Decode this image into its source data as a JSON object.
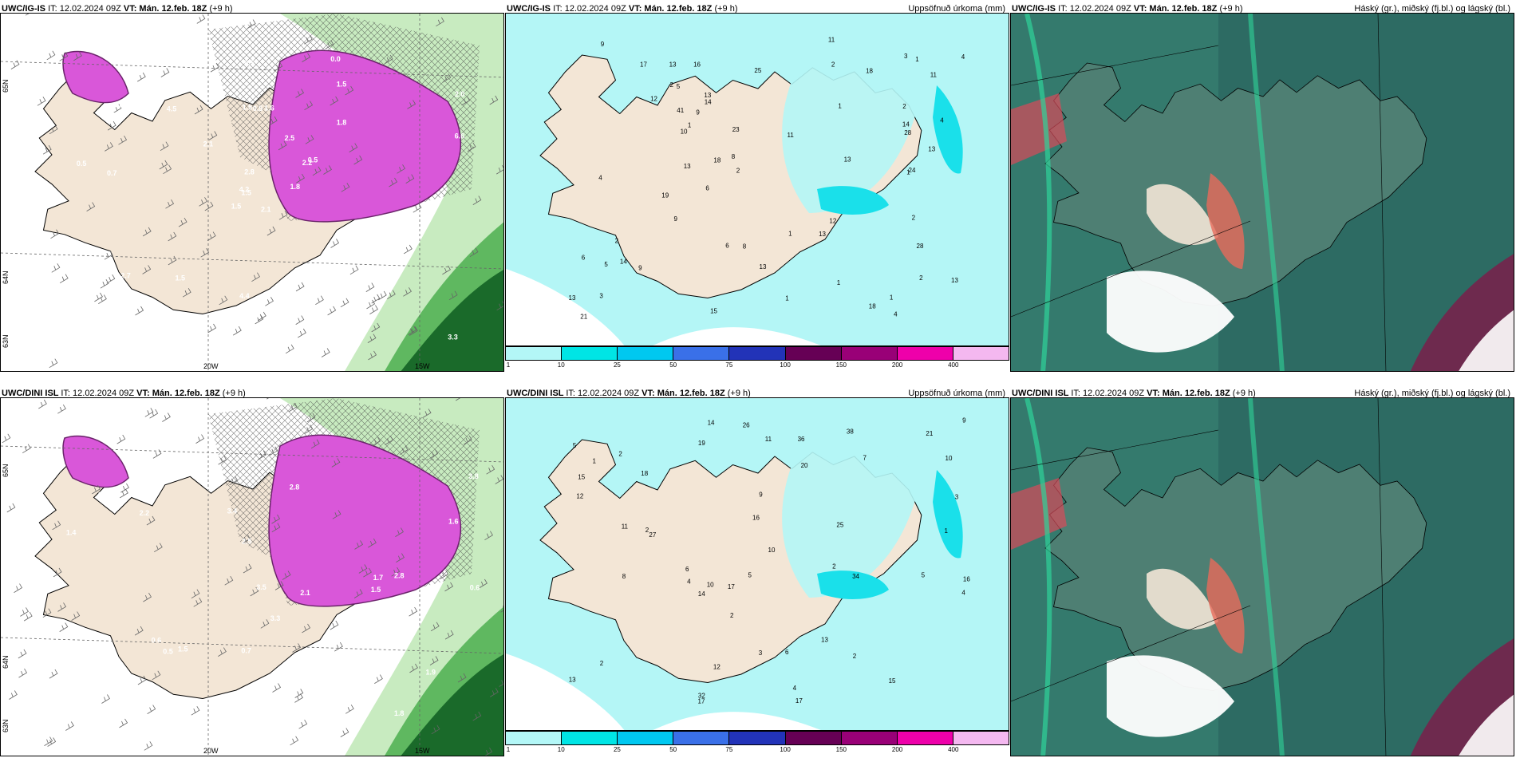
{
  "panels": [
    {
      "id": "top-left",
      "model": "UWC/IG-IS",
      "it_label": "IT:",
      "it_value": "12.02.2024 09Z",
      "vt_label": "VT:",
      "vt_value": "Mán. 12.feb. 18Z",
      "offset": "(+9 h)",
      "right_title": "",
      "lat_labels": [
        "65N",
        "64N",
        "63N"
      ],
      "lon_labels": [
        "20W",
        "15W"
      ],
      "values": [
        "2.1",
        "2.2",
        "1.5",
        "2.3",
        "2.2",
        "1.5",
        "0.0",
        "1.6",
        "1.5",
        "1.8",
        "2.0",
        "3.3",
        "0.7",
        "2.0",
        "1.5",
        "1.8",
        "2.2",
        "1.5",
        "2.5",
        "2.7",
        "2.1",
        "2.0",
        "1.5",
        "0.5",
        "0.5",
        "0.6",
        "0.6",
        "0.5",
        "0.5",
        "1.0",
        "6.6",
        "4.2",
        "4.4",
        "2.8",
        "4.5"
      ]
    },
    {
      "id": "top-middle",
      "model": "UWC/IG-IS",
      "it_label": "IT:",
      "it_value": "12.02.2024 09Z",
      "vt_label": "VT:",
      "vt_value": "Mán. 12.feb. 18Z",
      "offset": "(+9 h)",
      "right_title": "Uppsöfnuð úrkoma (mm)",
      "values": [
        "1",
        "5",
        "4",
        "2",
        "2",
        "1",
        "3",
        "4",
        "1",
        "2",
        "1",
        "1",
        "3",
        "6",
        "13",
        "21",
        "13",
        "12",
        "9",
        "18",
        "10",
        "13",
        "11",
        "14",
        "9",
        "13",
        "11",
        "8",
        "24",
        "28",
        "13",
        "13",
        "16",
        "19",
        "17",
        "15",
        "25",
        "28",
        "41",
        "14",
        "13",
        "23",
        "12",
        "14",
        "4",
        "8",
        "1",
        "2",
        "2",
        "2",
        "2",
        "5",
        "18",
        "18",
        "9",
        "11",
        "13",
        "9",
        "13",
        "6",
        "4",
        "1",
        "1",
        "6"
      ]
    },
    {
      "id": "top-right",
      "model": "UWC/IG-IS",
      "it_label": "IT:",
      "it_value": "12.02.2024 09Z",
      "vt_label": "VT:",
      "vt_value": "Mán. 12.feb. 18Z",
      "offset": "(+9 h)",
      "right_title": "Háský (gr.), miðský (fj.bl.) og lágský (bl.)"
    },
    {
      "id": "bottom-left",
      "model": "UWC/DINI ISL",
      "it_label": "IT:",
      "it_value": "12.02.2024 09Z",
      "vt_label": "VT:",
      "vt_value": "Mán. 12.feb. 18Z",
      "offset": "(+9 h)",
      "right_title": "",
      "lat_labels": [
        "65N",
        "64N",
        "63N"
      ],
      "lon_labels": [
        "20W",
        "15W"
      ],
      "values": [
        "2.2",
        "3.2",
        "2.5",
        "2.1",
        "1.5",
        "2.8",
        "1.4",
        "2.1",
        "1.9",
        "1.5",
        "2.2",
        "1.7",
        "1.8",
        "2.8",
        "3.3",
        "2.2",
        "3.4",
        "3.5",
        "0.6",
        "0.7",
        "0.6",
        "0.5",
        "0.7",
        "1.0",
        "1.6",
        "5.0",
        "3.8",
        "3.4"
      ]
    },
    {
      "id": "bottom-middle",
      "model": "UWC/DINI ISL",
      "it_label": "IT:",
      "it_value": "12.02.2024 09Z",
      "vt_label": "VT:",
      "vt_value": "Mán. 12.feb. 18Z",
      "offset": "(+9 h)",
      "right_title": "Uppsöfnuð úrkoma (mm)",
      "values": [
        "2",
        "4",
        "5",
        "9",
        "8",
        "6",
        "2",
        "2",
        "3",
        "1",
        "3",
        "2",
        "4",
        "13",
        "27",
        "25",
        "21",
        "10",
        "14",
        "17",
        "14",
        "12",
        "13",
        "15",
        "12",
        "20",
        "16",
        "34",
        "36",
        "26",
        "38",
        "32",
        "15",
        "19",
        "18",
        "10",
        "9",
        "11",
        "16",
        "10",
        "4",
        "5",
        "6",
        "7",
        "2",
        "11",
        "17",
        "17",
        "1",
        "2",
        "5"
      ]
    },
    {
      "id": "bottom-right",
      "model": "UWC/DINI ISL",
      "it_label": "IT:",
      "it_value": "12.02.2024 09Z",
      "vt_label": "VT:",
      "vt_value": "Mán. 12.feb. 18Z",
      "offset": "(+9 h)",
      "right_title": "Háský (gr.), miðský (fj.bl.) og lágský (bl.)"
    }
  ],
  "colorbar": {
    "ticks": [
      "1",
      "10",
      "25",
      "50",
      "75",
      "100",
      "150",
      "200",
      "400"
    ],
    "colors": [
      "#b3f7f7",
      "#00e5e5",
      "#00c8f0",
      "#3a70e8",
      "#2233b8",
      "#660055",
      "#990077",
      "#ee00aa",
      "#f4b8f0"
    ]
  },
  "colors": {
    "land": "#f3e6d6",
    "sea_precip": "#b4f6f6",
    "precip_mid": "#1ae0ea",
    "snow_magenta": "#d957d9",
    "rain_green_light": "#c8ebc0",
    "rain_green_dark": "#1a6a2a",
    "cloud_teal": "#2d6b63"
  }
}
